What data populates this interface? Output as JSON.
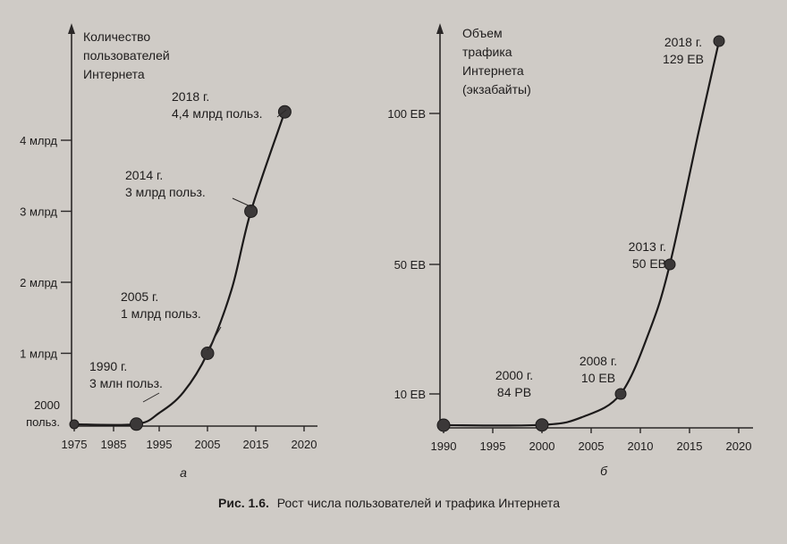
{
  "caption": {
    "number": "Рис. 1.6.",
    "text": "Рост числа пользователей и трафика Интернета"
  },
  "chart_data": [
    {
      "type": "line",
      "panel_label": "а",
      "ylabel_lines": [
        "Количество",
        "пользователей",
        "Интернета"
      ],
      "x_ticks": [
        1975,
        1985,
        1995,
        2005,
        2015,
        2020
      ],
      "y_ticks": [
        {
          "value": 0,
          "label_lines": [
            "2000",
            "польз."
          ]
        },
        {
          "value": 1,
          "label_lines": [
            "1 млрд"
          ]
        },
        {
          "value": 2,
          "label_lines": [
            "2 млрд"
          ]
        },
        {
          "value": 3,
          "label_lines": [
            "3 млрд"
          ]
        },
        {
          "value": 4,
          "label_lines": [
            "4 млрд"
          ]
        }
      ],
      "series": [
        {
          "x": [
            1975,
            1990,
            1995,
            2000,
            2005,
            2010,
            2014,
            2018
          ],
          "y": [
            0,
            0.003,
            0.16,
            0.45,
            1,
            1.9,
            3,
            4.4
          ]
        }
      ],
      "points": [
        {
          "x": 1975,
          "y": 0,
          "label_lines": []
        },
        {
          "x": 1990,
          "y": 0.003,
          "label_lines": [
            "1990 г.",
            "3 млн польз."
          ]
        },
        {
          "x": 2005,
          "y": 1,
          "label_lines": [
            "2005 г.",
            "1 млрд польз."
          ]
        },
        {
          "x": 2014,
          "y": 3,
          "label_lines": [
            "2014 г.",
            "3 млрд польз."
          ]
        },
        {
          "x": 2018,
          "y": 4.4,
          "label_lines": [
            "2018 г.",
            "4,4 млрд польз."
          ]
        }
      ]
    },
    {
      "type": "line",
      "panel_label": "б",
      "ylabel_lines": [
        "Объем",
        "трафика",
        "Интернета",
        "(экзабайты)"
      ],
      "x_ticks": [
        1990,
        1995,
        2000,
        2005,
        2010,
        2015,
        2020
      ],
      "y_ticks": [
        {
          "value": 10,
          "label_lines": [
            "10 ЕВ"
          ]
        },
        {
          "value": 50,
          "label_lines": [
            "50 ЕВ"
          ]
        },
        {
          "value": 100,
          "label_lines": [
            "100 ЕВ"
          ]
        }
      ],
      "series": [
        {
          "x": [
            1990,
            2000,
            2004,
            2008,
            2011,
            2013,
            2016,
            2018
          ],
          "y": [
            0.0,
            0.084,
            2.5,
            10,
            30,
            50,
            95,
            129
          ]
        }
      ],
      "points": [
        {
          "x": 1990,
          "y": 0.0,
          "label_lines": []
        },
        {
          "x": 2000,
          "y": 0.084,
          "label_lines": [
            "2000 г.",
            "84 РВ"
          ]
        },
        {
          "x": 2008,
          "y": 10,
          "label_lines": [
            "2008 г.",
            "10 ЕВ"
          ]
        },
        {
          "x": 2013,
          "y": 50,
          "label_lines": [
            "2013 г.",
            "50 ЕВ"
          ]
        },
        {
          "x": 2018,
          "y": 129,
          "label_lines": [
            "2018 г.",
            "129 ЕВ"
          ]
        }
      ]
    }
  ]
}
